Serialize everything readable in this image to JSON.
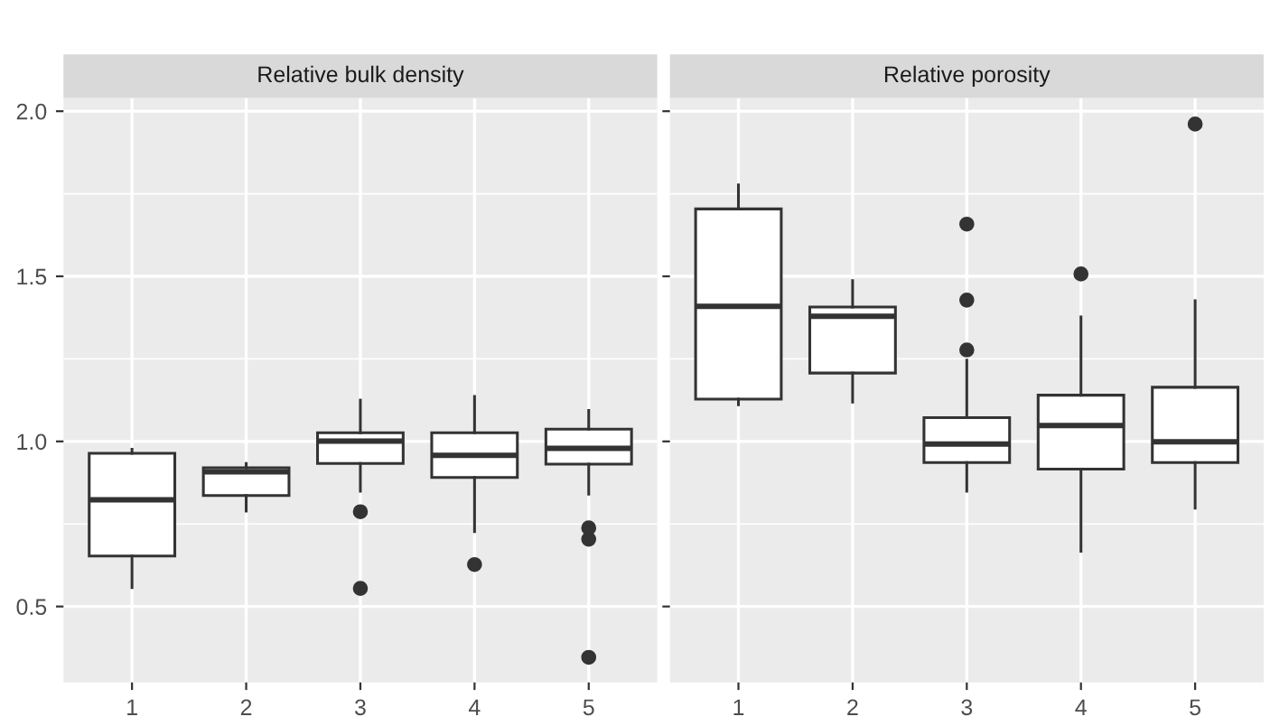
{
  "chart_data": [
    {
      "type": "box",
      "title": "Relative bulk density",
      "categories": [
        "1",
        "2",
        "3",
        "4",
        "5"
      ],
      "boxes": [
        {
          "low": 0.557,
          "q1": 0.653,
          "median": 0.823,
          "q3": 0.964,
          "high": 0.976
        },
        {
          "low": 0.789,
          "q1": 0.836,
          "median": 0.908,
          "q3": 0.92,
          "high": 0.933
        },
        {
          "low": 0.849,
          "q1": 0.933,
          "median": 1.001,
          "q3": 1.026,
          "high": 1.125,
          "outliers": [
            0.787,
            0.555
          ]
        },
        {
          "low": 0.727,
          "q1": 0.891,
          "median": 0.958,
          "q3": 1.026,
          "high": 1.136,
          "outliers": [
            0.627
          ]
        },
        {
          "low": 0.84,
          "q1": 0.931,
          "median": 0.979,
          "q3": 1.037,
          "high": 1.094,
          "outliers": [
            0.738,
            0.704,
            0.346
          ]
        }
      ],
      "ylim": [
        0.27,
        2.04
      ],
      "yticks": [
        {
          "value": 0.5,
          "label": "0.5"
        },
        {
          "value": 1.0,
          "label": "1.0"
        },
        {
          "value": 1.5,
          "label": "1.5"
        },
        {
          "value": 2.0,
          "label": "2.0"
        }
      ],
      "grid": true
    },
    {
      "type": "box",
      "title": "Relative porosity",
      "categories": [
        "1",
        "2",
        "3",
        "4",
        "5"
      ],
      "boxes": [
        {
          "low": 1.111,
          "q1": 1.128,
          "median": 1.409,
          "q3": 1.704,
          "high": 1.777
        },
        {
          "low": 1.119,
          "q1": 1.207,
          "median": 1.379,
          "q3": 1.407,
          "high": 1.487
        },
        {
          "low": 0.849,
          "q1": 0.936,
          "median": 0.992,
          "q3": 1.072,
          "high": 1.246,
          "outliers": [
            1.658,
            1.428,
            1.277
          ]
        },
        {
          "low": 0.667,
          "q1": 0.916,
          "median": 1.048,
          "q3": 1.14,
          "high": 1.377,
          "outliers": [
            1.507
          ]
        },
        {
          "low": 0.798,
          "q1": 0.936,
          "median": 0.999,
          "q3": 1.164,
          "high": 1.426,
          "outliers": [
            1.961
          ]
        }
      ],
      "ylim": [
        0.27,
        2.04
      ],
      "yticks": [
        0.5,
        1,
        1.5,
        2
      ],
      "grid": true,
      "tick_labels": "x"
    }
  ]
}
